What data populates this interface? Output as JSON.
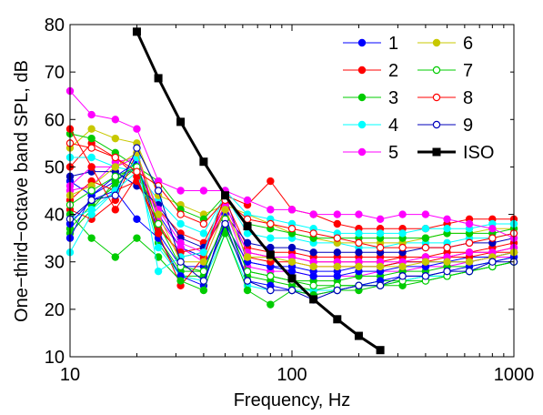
{
  "chart_data": {
    "type": "line",
    "xscale": "log",
    "xlim": [
      10,
      1000
    ],
    "ylim": [
      10,
      80
    ],
    "xlabel": "Frequency, Hz",
    "ylabel": "One−third−octave band SPL, dB",
    "xticks": [
      10,
      100,
      1000
    ],
    "xtick_labels": [
      "10",
      "100",
      "1000"
    ],
    "yticks": [
      10,
      20,
      30,
      40,
      50,
      60,
      70,
      80
    ],
    "ytick_labels": [
      "10",
      "20",
      "30",
      "40",
      "50",
      "60",
      "70",
      "80"
    ],
    "grid": false,
    "legend_position": "top-right",
    "x": [
      10,
      12.5,
      16,
      20,
      25,
      31.5,
      40,
      50,
      63,
      80,
      100,
      125,
      160,
      200,
      250,
      315,
      400,
      500,
      630,
      800,
      1000
    ],
    "series": [
      {
        "name": "1",
        "color": "#0000ff",
        "marker": "filled",
        "values": [
          38,
          43,
          45,
          39,
          35,
          27,
          25,
          40,
          26,
          25,
          24,
          23,
          24,
          25,
          26,
          27,
          27,
          28,
          29,
          30,
          31
        ]
      },
      {
        "name": "2",
        "color": "#ff0000",
        "marker": "filled",
        "values": [
          58,
          50,
          41,
          48,
          36,
          25,
          31,
          44,
          42,
          47,
          41,
          40,
          38,
          37,
          37,
          37,
          37,
          38,
          39,
          39,
          39
        ]
      },
      {
        "name": "3",
        "color": "#00cc00",
        "marker": "filled",
        "values": [
          40,
          35,
          31,
          35,
          31,
          26,
          24,
          36,
          24,
          21,
          24,
          23,
          24,
          24,
          25,
          25,
          26,
          27,
          28,
          29,
          30
        ]
      },
      {
        "name": "4",
        "color": "#00ffff",
        "marker": "filled",
        "values": [
          32,
          40,
          45,
          52,
          28,
          31,
          32,
          45,
          40,
          39,
          38,
          37,
          36,
          36,
          36,
          36,
          37,
          37,
          37,
          38,
          38
        ]
      },
      {
        "name": "5",
        "color": "#ff00ff",
        "marker": "filled",
        "values": [
          66,
          61,
          60,
          58,
          47,
          45,
          45,
          45,
          43,
          41,
          41,
          40,
          40,
          40,
          39,
          40,
          40,
          39,
          38,
          37,
          35
        ]
      },
      {
        "name": "6",
        "color": "#c8c800",
        "marker": "filled",
        "values": [
          44,
          46,
          50,
          53,
          40,
          30,
          30,
          41,
          31,
          31,
          30,
          29,
          29,
          29,
          29,
          29,
          30,
          30,
          30,
          31,
          32
        ]
      },
      {
        "name": "7",
        "color": "#00cc00",
        "marker": "open",
        "values": [
          42,
          45,
          48,
          50,
          38,
          29,
          28,
          39,
          28,
          27,
          26,
          25,
          25,
          25,
          25,
          26,
          26,
          27,
          28,
          29,
          30
        ]
      },
      {
        "name": "8",
        "color": "#ff0000",
        "marker": "open",
        "values": [
          55,
          54,
          52,
          49,
          46,
          40,
          38,
          43,
          39,
          38,
          37,
          36,
          35,
          34,
          33,
          33,
          33,
          33,
          34,
          35,
          36
        ]
      },
      {
        "name": "9",
        "color": "#0000bb",
        "marker": "open",
        "values": [
          39,
          43,
          44,
          54,
          45,
          30,
          26,
          38,
          26,
          24,
          24,
          22,
          24,
          25,
          25,
          27,
          27,
          28,
          28,
          30,
          30
        ]
      },
      {
        "name": "ISO",
        "color": "#000000",
        "marker": "square",
        "x": [
          20,
          25,
          31.5,
          40,
          50,
          63,
          80,
          100,
          125,
          160,
          200,
          250
        ],
        "values": [
          78.5,
          68.7,
          59.5,
          51.1,
          44.0,
          37.5,
          31.5,
          26.5,
          22.1,
          17.9,
          14.4,
          11.4
        ]
      }
    ],
    "background_series": {
      "colors": [
        "#0000ff",
        "#ff0000",
        "#00cc00",
        "#00ffff",
        "#ff00ff",
        "#c8c800",
        "#00cc00",
        "#ff0000",
        "#0000bb"
      ],
      "values": [
        [
          47,
          44,
          47,
          50,
          40,
          33,
          31,
          44,
          30,
          29,
          29,
          28,
          28,
          29,
          29,
          30,
          30,
          30,
          31,
          31,
          32
        ],
        [
          50,
          55,
          52,
          48,
          41,
          36,
          34,
          43,
          33,
          32,
          32,
          31,
          31,
          31,
          31,
          31,
          31,
          32,
          32,
          33,
          34
        ],
        [
          36,
          41,
          47,
          51,
          34,
          27,
          27,
          37,
          27,
          26,
          25,
          24,
          25,
          25,
          26,
          26,
          27,
          27,
          28,
          29,
          30
        ],
        [
          52,
          52,
          50,
          49,
          43,
          38,
          36,
          44,
          36,
          35,
          35,
          34,
          34,
          33,
          33,
          34,
          34,
          34,
          35,
          35,
          36
        ],
        [
          45,
          46,
          51,
          52,
          39,
          33,
          30,
          41,
          29,
          28,
          28,
          27,
          27,
          27,
          28,
          28,
          29,
          29,
          30,
          31,
          31
        ],
        [
          54,
          58,
          56,
          55,
          44,
          42,
          40,
          42,
          40,
          38,
          36,
          35,
          34,
          34,
          34,
          34,
          35,
          36,
          36,
          37,
          37
        ],
        [
          37,
          42,
          46,
          50,
          35,
          28,
          28,
          39,
          28,
          27,
          26,
          26,
          26,
          27,
          27,
          28,
          28,
          29,
          29,
          30,
          31
        ],
        [
          41,
          39,
          43,
          53,
          37,
          32,
          33,
          42,
          32,
          31,
          31,
          30,
          30,
          30,
          30,
          31,
          31,
          31,
          32,
          32,
          33
        ],
        [
          48,
          49,
          49,
          46,
          42,
          35,
          33,
          40,
          34,
          33,
          33,
          32,
          32,
          32,
          32,
          32,
          33,
          33,
          34,
          34,
          35
        ],
        [
          35,
          44,
          48,
          51,
          36,
          29,
          29,
          38,
          30,
          29,
          28,
          27,
          27,
          28,
          28,
          29,
          29,
          30,
          30,
          31,
          32
        ],
        [
          43,
          47,
          45,
          47,
          38,
          31,
          32,
          41,
          31,
          30,
          30,
          29,
          29,
          29,
          29,
          30,
          30,
          31,
          31,
          32,
          32
        ],
        [
          57,
          56,
          53,
          50,
          47,
          41,
          39,
          44,
          38,
          37,
          36,
          35,
          35,
          35,
          35,
          35,
          35,
          36,
          36,
          36,
          37
        ],
        [
          39,
          41,
          45,
          49,
          33,
          27,
          26,
          36,
          25,
          24,
          24,
          24,
          24,
          25,
          25,
          26,
          27,
          27,
          28,
          29,
          30
        ],
        [
          46,
          50,
          50,
          52,
          41,
          34,
          32,
          42,
          32,
          31,
          31,
          30,
          30,
          30,
          30,
          30,
          31,
          31,
          32,
          32,
          33
        ]
      ]
    }
  },
  "legend": {
    "items": [
      {
        "label": "1",
        "color": "#0000ff",
        "marker": "filled"
      },
      {
        "label": "2",
        "color": "#ff0000",
        "marker": "filled"
      },
      {
        "label": "3",
        "color": "#00cc00",
        "marker": "filled"
      },
      {
        "label": "4",
        "color": "#00ffff",
        "marker": "filled"
      },
      {
        "label": "5",
        "color": "#ff00ff",
        "marker": "filled"
      },
      {
        "label": "6",
        "color": "#c8c800",
        "marker": "filled"
      },
      {
        "label": "7",
        "color": "#00cc00",
        "marker": "open"
      },
      {
        "label": "8",
        "color": "#ff0000",
        "marker": "open"
      },
      {
        "label": "9",
        "color": "#0000bb",
        "marker": "open"
      },
      {
        "label": "ISO",
        "color": "#000000",
        "marker": "square"
      }
    ]
  }
}
